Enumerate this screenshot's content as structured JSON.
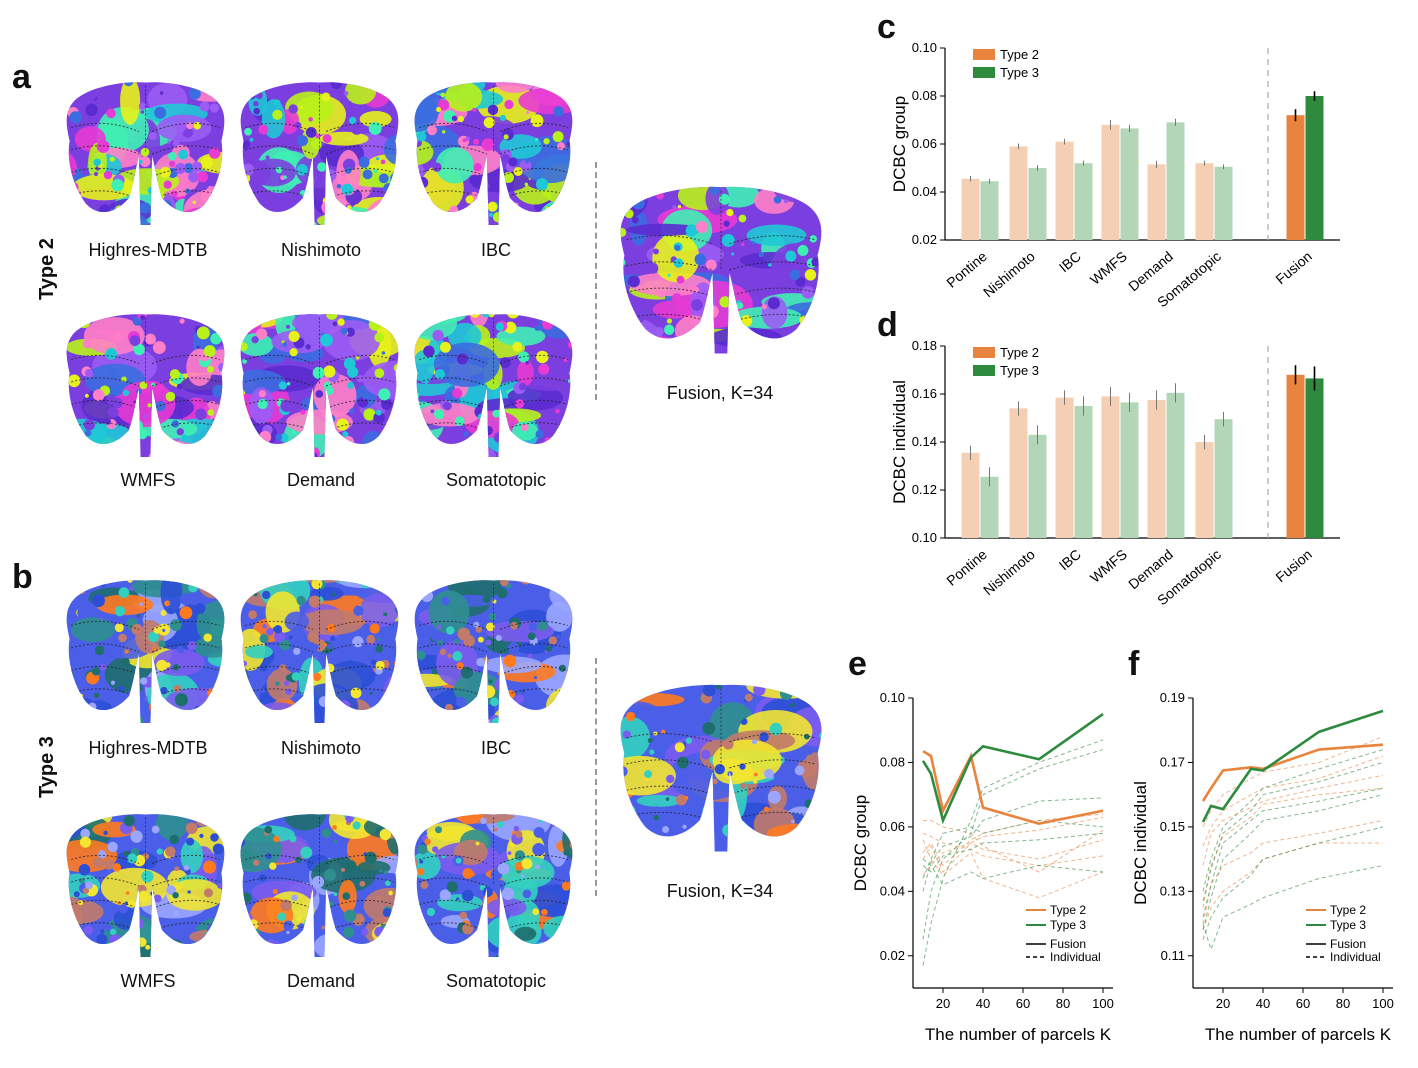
{
  "panel_letters": [
    "a",
    "b",
    "c",
    "d",
    "e",
    "f"
  ],
  "rows": [
    {
      "label": "Type 2",
      "maps": [
        "Highres-MDTB",
        "Nishimoto",
        "IBC",
        "WMFS",
        "Demand",
        "Somatotopic"
      ],
      "fusion_label": "Fusion, K=34"
    },
    {
      "label": "Type 3",
      "maps": [
        "Highres-MDTB",
        "Nishimoto",
        "IBC",
        "WMFS",
        "Demand",
        "Somatotopic"
      ],
      "fusion_label": "Fusion, K=34"
    }
  ],
  "colors": {
    "type2": "#e8843d",
    "type3": "#2e8b3e",
    "type2_light": "#f5cfb4",
    "type3_light": "#b3d6b9"
  },
  "chart_data": [
    {
      "type": "bar",
      "panel": "c",
      "categories": [
        "Pontine",
        "Nishimoto",
        "IBC",
        "WMFS",
        "Demand",
        "Somatotopic",
        "Fusion"
      ],
      "series": [
        {
          "name": "Type 2",
          "values": [
            0.0455,
            0.059,
            0.061,
            0.068,
            0.0515,
            0.052,
            0.072
          ]
        },
        {
          "name": "Type 3",
          "values": [
            0.0445,
            0.05,
            0.052,
            0.0665,
            0.069,
            0.0505,
            0.08
          ]
        }
      ],
      "errors": [
        [
          0.0012,
          0.0012,
          0.0012,
          0.002,
          0.0015,
          0.001,
          0.0025
        ],
        [
          0.001,
          0.0012,
          0.001,
          0.0015,
          0.0015,
          0.001,
          0.002
        ]
      ],
      "ylabel": "DCBC group",
      "ylim": [
        0.02,
        0.1
      ],
      "yticks": [
        "0.02",
        "0.04",
        "0.06",
        "0.08",
        "0.10"
      ],
      "legend": [
        "Type 2",
        "Type 3"
      ]
    },
    {
      "type": "bar",
      "panel": "d",
      "categories": [
        "Pontine",
        "Nishimoto",
        "IBC",
        "WMFS",
        "Demand",
        "Somatotopic",
        "Fusion"
      ],
      "series": [
        {
          "name": "Type 2",
          "values": [
            0.1355,
            0.154,
            0.1585,
            0.159,
            0.1575,
            0.14,
            0.168
          ]
        },
        {
          "name": "Type 3",
          "values": [
            0.1255,
            0.143,
            0.155,
            0.1565,
            0.1605,
            0.1495,
            0.1665
          ]
        }
      ],
      "errors": [
        [
          0.003,
          0.003,
          0.003,
          0.004,
          0.004,
          0.003,
          0.004
        ],
        [
          0.004,
          0.004,
          0.004,
          0.004,
          0.004,
          0.003,
          0.005
        ]
      ],
      "ylabel": "DCBC individual",
      "ylim": [
        0.1,
        0.18
      ],
      "yticks": [
        "0.10",
        "0.12",
        "0.14",
        "0.16",
        "0.18"
      ],
      "legend": [
        "Type 2",
        "Type 3"
      ]
    },
    {
      "type": "line",
      "panel": "e",
      "xlabel": "The number of parcels K",
      "ylabel": "DCBC group",
      "xlim": [
        5,
        105
      ],
      "ylim": [
        0.01,
        0.1
      ],
      "xticks": [
        "20",
        "40",
        "60",
        "80",
        "100"
      ],
      "yticks": [
        "0.02",
        "0.04",
        "0.06",
        "0.08",
        "0.10"
      ],
      "x": [
        10,
        14,
        20,
        34,
        40,
        68,
        100
      ],
      "fusion": [
        {
          "name": "Type 2",
          "values": [
            0.0835,
            0.082,
            0.065,
            0.082,
            0.066,
            0.061,
            0.065
          ]
        },
        {
          "name": "Type 3",
          "values": [
            0.0805,
            0.0765,
            0.062,
            0.0815,
            0.085,
            0.081,
            0.095
          ]
        }
      ],
      "individual": [
        {
          "name": "Type 2",
          "values": [
            0.062,
            0.062,
            0.06,
            0.058,
            0.054,
            0.046,
            0.059
          ]
        },
        {
          "name": "Type 2",
          "values": [
            0.052,
            0.055,
            0.048,
            0.056,
            0.058,
            0.062,
            0.064
          ]
        },
        {
          "name": "Type 2",
          "values": [
            0.05,
            0.054,
            0.046,
            0.055,
            0.057,
            0.059,
            0.063
          ]
        },
        {
          "name": "Type 2",
          "values": [
            0.056,
            0.05,
            0.045,
            0.052,
            0.044,
            0.038,
            0.046
          ]
        },
        {
          "name": "Type 2",
          "values": [
            0.045,
            0.048,
            0.052,
            0.055,
            0.053,
            0.05,
            0.056
          ]
        },
        {
          "name": "Type 2",
          "values": [
            0.058,
            0.057,
            0.055,
            0.053,
            0.051,
            0.048,
            0.051
          ]
        },
        {
          "name": "Type 3",
          "values": [
            0.017,
            0.03,
            0.044,
            0.062,
            0.072,
            0.08,
            0.087
          ]
        },
        {
          "name": "Type 3",
          "values": [
            0.025,
            0.04,
            0.05,
            0.058,
            0.07,
            0.078,
            0.084
          ]
        },
        {
          "name": "Type 3",
          "values": [
            0.04,
            0.049,
            0.054,
            0.057,
            0.062,
            0.068,
            0.069
          ]
        },
        {
          "name": "Type 3",
          "values": [
            0.044,
            0.05,
            0.058,
            0.06,
            0.058,
            0.062,
            0.06
          ]
        },
        {
          "name": "Type 3",
          "values": [
            0.05,
            0.048,
            0.042,
            0.046,
            0.044,
            0.048,
            0.046
          ]
        },
        {
          "name": "Type 3",
          "values": [
            0.048,
            0.046,
            0.051,
            0.053,
            0.055,
            0.056,
            0.058
          ]
        }
      ],
      "legend": [
        "Type 2",
        "Type 3",
        "Fusion",
        "Individual"
      ]
    },
    {
      "type": "line",
      "panel": "f",
      "xlabel": "The number of parcels K",
      "ylabel": "DCBC individual",
      "xlim": [
        5,
        105
      ],
      "ylim": [
        0.1,
        0.19
      ],
      "xticks": [
        "20",
        "40",
        "60",
        "80",
        "100"
      ],
      "yticks": [
        "0.11",
        "0.13",
        "0.15",
        "0.17",
        "0.19"
      ],
      "x": [
        10,
        14,
        20,
        34,
        40,
        68,
        100
      ],
      "fusion": [
        {
          "name": "Type 2",
          "values": [
            0.158,
            0.162,
            0.1675,
            0.1685,
            0.168,
            0.174,
            0.1755
          ]
        },
        {
          "name": "Type 3",
          "values": [
            0.1515,
            0.1565,
            0.1555,
            0.168,
            0.1675,
            0.1795,
            0.186
          ]
        }
      ],
      "individual": [
        {
          "name": "Type 2",
          "values": [
            0.15,
            0.155,
            0.16,
            0.165,
            0.167,
            0.17,
            0.178
          ]
        },
        {
          "name": "Type 2",
          "values": [
            0.144,
            0.15,
            0.155,
            0.16,
            0.162,
            0.165,
            0.172
          ]
        },
        {
          "name": "Type 2",
          "values": [
            0.138,
            0.148,
            0.152,
            0.156,
            0.158,
            0.162,
            0.166
          ]
        },
        {
          "name": "Type 2",
          "values": [
            0.125,
            0.138,
            0.147,
            0.153,
            0.157,
            0.16,
            0.162
          ]
        },
        {
          "name": "Type 2",
          "values": [
            0.12,
            0.132,
            0.138,
            0.142,
            0.145,
            0.148,
            0.152
          ]
        },
        {
          "name": "Type 2",
          "values": [
            0.118,
            0.125,
            0.13,
            0.136,
            0.14,
            0.145,
            0.145
          ]
        },
        {
          "name": "Type 3",
          "values": [
            0.13,
            0.14,
            0.15,
            0.158,
            0.162,
            0.168,
            0.174
          ]
        },
        {
          "name": "Type 3",
          "values": [
            0.127,
            0.137,
            0.148,
            0.155,
            0.16,
            0.164,
            0.17
          ]
        },
        {
          "name": "Type 3",
          "values": [
            0.122,
            0.132,
            0.145,
            0.152,
            0.155,
            0.158,
            0.162
          ]
        },
        {
          "name": "Type 3",
          "values": [
            0.118,
            0.128,
            0.14,
            0.148,
            0.152,
            0.155,
            0.16
          ]
        },
        {
          "name": "Type 3",
          "values": [
            0.115,
            0.122,
            0.128,
            0.135,
            0.14,
            0.145,
            0.15
          ]
        },
        {
          "name": "Type 3",
          "values": [
            0.12,
            0.112,
            0.122,
            0.126,
            0.128,
            0.134,
            0.138
          ]
        }
      ],
      "legend": [
        "Type 2",
        "Type 3",
        "Fusion",
        "Individual"
      ]
    }
  ]
}
